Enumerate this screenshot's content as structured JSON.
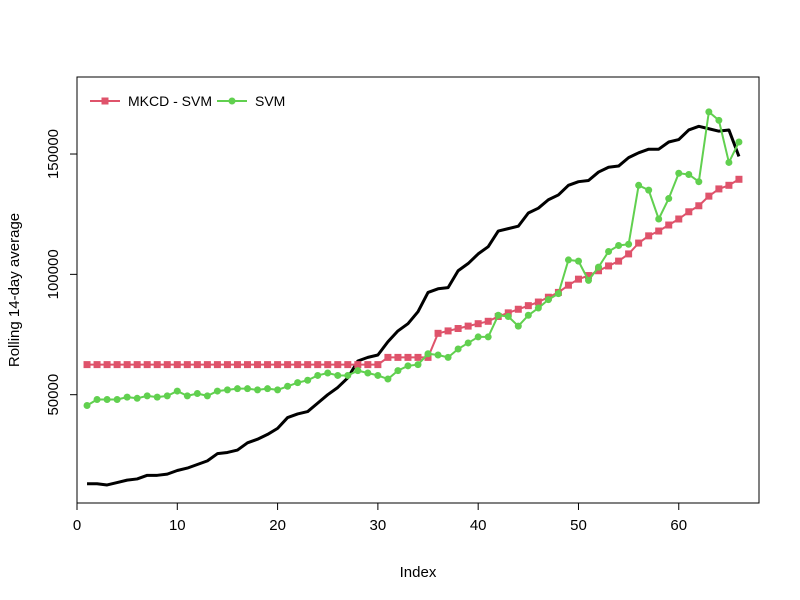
{
  "chart_data": {
    "type": "line",
    "title": "",
    "xlabel": "Index",
    "ylabel": "Rolling 14-day average",
    "xlim": [
      0,
      68
    ],
    "ylim": [
      5000,
      182000
    ],
    "x_ticks": [
      0,
      10,
      20,
      30,
      40,
      50,
      60
    ],
    "y_ticks": [
      50000,
      100000,
      150000
    ],
    "x": [
      1,
      2,
      3,
      4,
      5,
      6,
      7,
      8,
      9,
      10,
      11,
      12,
      13,
      14,
      15,
      16,
      17,
      18,
      19,
      20,
      21,
      22,
      23,
      24,
      25,
      26,
      27,
      28,
      29,
      30,
      31,
      32,
      33,
      34,
      35,
      36,
      37,
      38,
      39,
      40,
      41,
      42,
      43,
      44,
      45,
      46,
      47,
      48,
      49,
      50,
      51,
      52,
      53,
      54,
      55,
      56,
      57,
      58,
      59,
      60,
      61,
      62,
      63,
      64,
      65,
      66
    ],
    "legend_position": "top-left",
    "grid": false,
    "series": [
      {
        "style": "line",
        "color": "#000000",
        "values": [
          13000,
          13000,
          12500,
          13500,
          14500,
          15000,
          16500,
          16500,
          17000,
          18500,
          19500,
          21000,
          22500,
          25500,
          26000,
          27000,
          30000,
          31500,
          33500,
          36000,
          40500,
          42000,
          43000,
          46500,
          50000,
          53000,
          57000,
          64000,
          65500,
          66500,
          72000,
          76500,
          79500,
          84500,
          92500,
          94000,
          94500,
          101500,
          104500,
          108500,
          111500,
          118000,
          119000,
          120000,
          125500,
          127500,
          131000,
          133000,
          137000,
          138500,
          139000,
          142500,
          144500,
          145000,
          148500,
          150500,
          152000,
          152000,
          155000,
          156000,
          160000,
          161500,
          160500,
          159500,
          160000,
          149000
        ]
      },
      {
        "name": "MKCD - SVM",
        "style": "line-square",
        "color": "#DF536B",
        "values": [
          62500,
          62500,
          62500,
          62500,
          62500,
          62500,
          62500,
          62500,
          62500,
          62500,
          62500,
          62500,
          62500,
          62500,
          62500,
          62500,
          62500,
          62500,
          62500,
          62500,
          62500,
          62500,
          62500,
          62500,
          62500,
          62500,
          62500,
          62500,
          62500,
          62500,
          65500,
          65500,
          65500,
          65500,
          65500,
          75500,
          76500,
          77500,
          78500,
          79500,
          80500,
          82500,
          84000,
          85500,
          87000,
          88500,
          90500,
          92500,
          95500,
          98000,
          99500,
          101500,
          103500,
          105500,
          108500,
          113000,
          116000,
          118000,
          120500,
          123000,
          126000,
          128500,
          132500,
          135500,
          137000,
          139500
        ]
      },
      {
        "name": "SVM",
        "style": "line-circle",
        "color": "#61D04F",
        "values": [
          45500,
          48000,
          48000,
          48000,
          49000,
          48500,
          49500,
          49000,
          49500,
          51500,
          49500,
          50500,
          49500,
          51500,
          52000,
          52500,
          52500,
          52000,
          52500,
          52000,
          53500,
          55000,
          56000,
          58000,
          59000,
          58000,
          58000,
          60000,
          59000,
          58000,
          56500,
          60000,
          62000,
          62500,
          67000,
          66500,
          65500,
          69000,
          71500,
          74000,
          74000,
          83000,
          82500,
          78500,
          83000,
          86000,
          89500,
          92000,
          106000,
          105500,
          97500,
          103000,
          109500,
          112000,
          112500,
          137000,
          135000,
          123000,
          131500,
          142000,
          141500,
          138500,
          167500,
          164000,
          146500,
          155000
        ]
      }
    ]
  }
}
